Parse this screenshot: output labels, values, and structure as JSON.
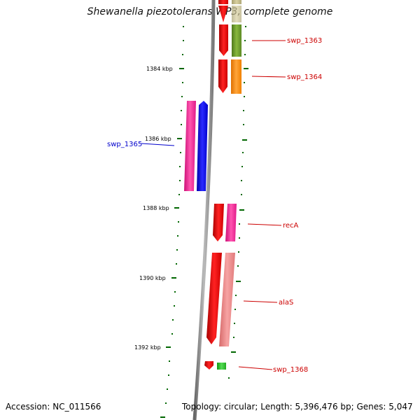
{
  "title": "Shewanella piezotolerans WP3, complete genome",
  "scale_labels": [
    "1384 kbp",
    "1386 kbp",
    "1388 kbp",
    "1390 kbp",
    "1392 kbp"
  ],
  "genes": [
    {
      "name": "swp_1363",
      "color": "#cc0000"
    },
    {
      "name": "swp_1364",
      "color": "#cc0000"
    },
    {
      "name": "swp_1365",
      "color": "#0000cc"
    },
    {
      "name": "recA",
      "color": "#cc0000"
    },
    {
      "name": "alaS",
      "color": "#cc0000"
    },
    {
      "name": "swp_1368",
      "color": "#cc0000"
    }
  ],
  "colors": {
    "red": "#ee0000",
    "olive": "#6b9a2a",
    "orange": "#ff8c00",
    "magenta": "#ff1493",
    "blue": "#0000ee",
    "pink": "#f08080",
    "green": "#22bb22",
    "backbone": "#888888",
    "tick": "#006600"
  },
  "footer": {
    "accession": "Accession: NC_011566",
    "summary": "Topology: circular; Length: 5,396,476 bp; Genes: 5,047"
  }
}
